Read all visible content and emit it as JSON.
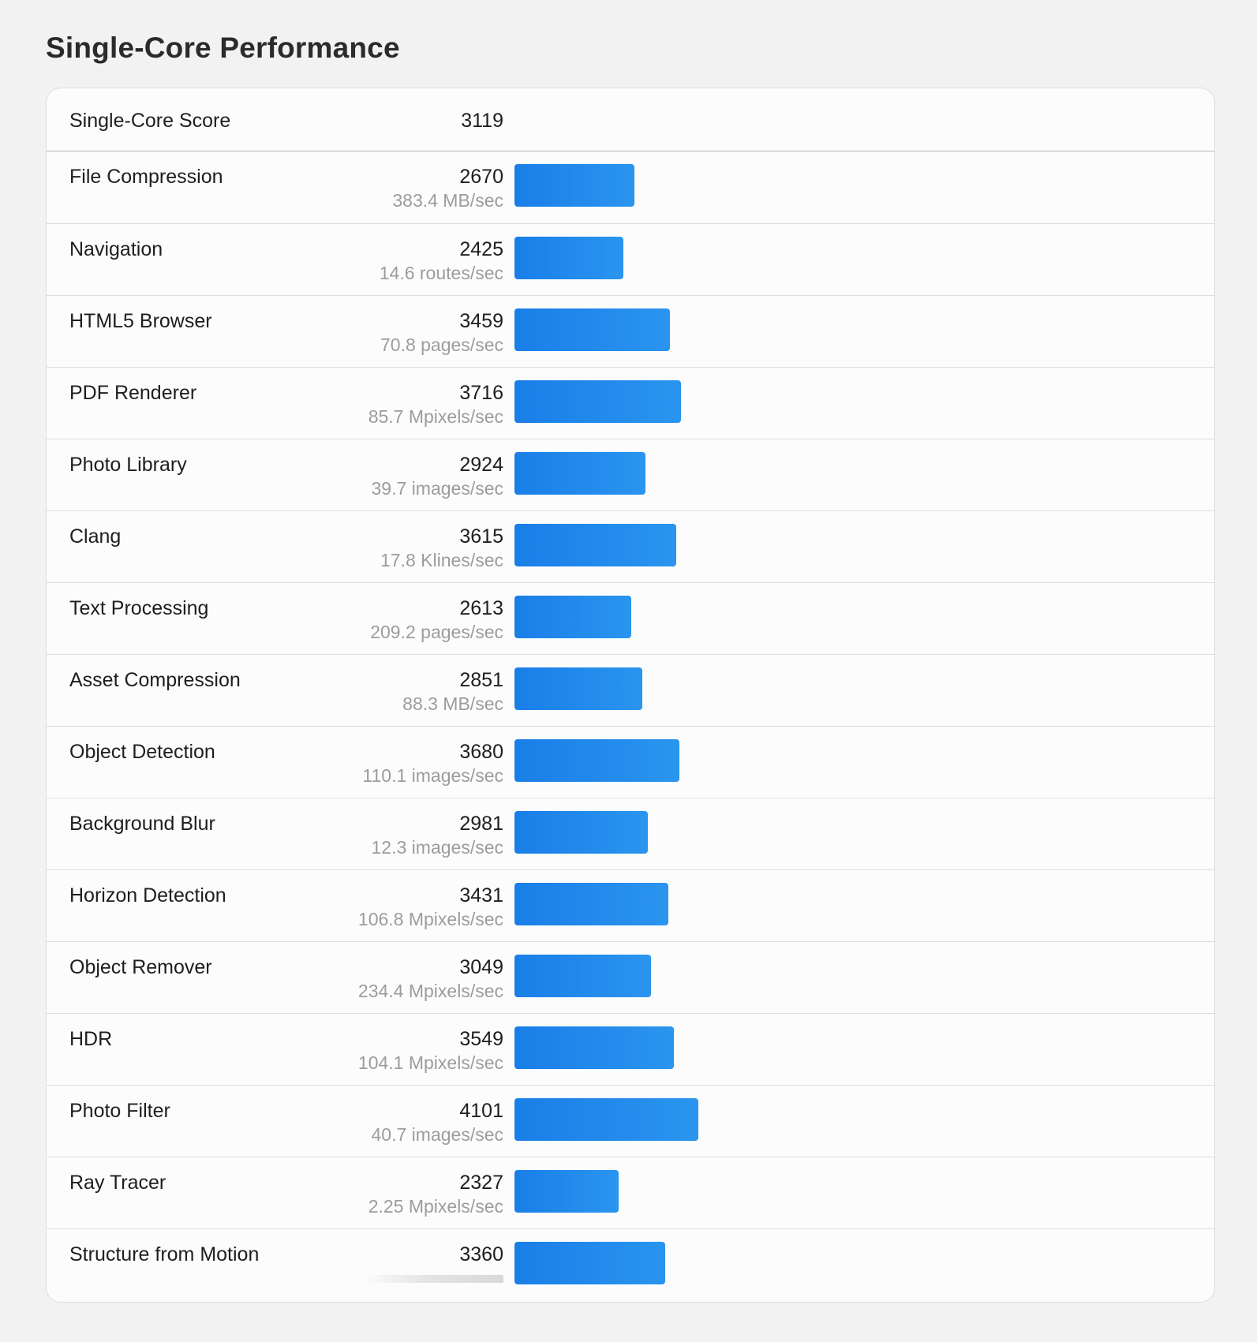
{
  "page": {
    "title": "Single-Core Performance"
  },
  "colors": {
    "bar_start": "#1a7ee8",
    "bar_end": "#2a95ef",
    "background": "#f2f2f2",
    "card": "#fcfcfc",
    "secondary_text": "#9c9c9c"
  },
  "summary": {
    "label": "Single-Core Score",
    "score": "3119"
  },
  "bar_scale_max": 4101,
  "benchmarks": [
    {
      "name": "File Compression",
      "score": "2670",
      "value": 2670,
      "sub": "383.4 MB/sec"
    },
    {
      "name": "Navigation",
      "score": "2425",
      "value": 2425,
      "sub": "14.6 routes/sec"
    },
    {
      "name": "HTML5 Browser",
      "score": "3459",
      "value": 3459,
      "sub": "70.8 pages/sec"
    },
    {
      "name": "PDF Renderer",
      "score": "3716",
      "value": 3716,
      "sub": "85.7 Mpixels/sec"
    },
    {
      "name": "Photo Library",
      "score": "2924",
      "value": 2924,
      "sub": "39.7 images/sec"
    },
    {
      "name": "Clang",
      "score": "3615",
      "value": 3615,
      "sub": "17.8 Klines/sec"
    },
    {
      "name": "Text Processing",
      "score": "2613",
      "value": 2613,
      "sub": "209.2 pages/sec"
    },
    {
      "name": "Asset Compression",
      "score": "2851",
      "value": 2851,
      "sub": "88.3 MB/sec"
    },
    {
      "name": "Object Detection",
      "score": "3680",
      "value": 3680,
      "sub": "110.1 images/sec"
    },
    {
      "name": "Background Blur",
      "score": "2981",
      "value": 2981,
      "sub": "12.3 images/sec"
    },
    {
      "name": "Horizon Detection",
      "score": "3431",
      "value": 3431,
      "sub": "106.8 Mpixels/sec"
    },
    {
      "name": "Object Remover",
      "score": "3049",
      "value": 3049,
      "sub": "234.4 Mpixels/sec"
    },
    {
      "name": "HDR",
      "score": "3549",
      "value": 3549,
      "sub": "104.1 Mpixels/sec"
    },
    {
      "name": "Photo Filter",
      "score": "4101",
      "value": 4101,
      "sub": "40.7 images/sec"
    },
    {
      "name": "Ray Tracer",
      "score": "2327",
      "value": 2327,
      "sub": "2.25 Mpixels/sec"
    },
    {
      "name": "Structure from Motion",
      "score": "3360",
      "value": 3360,
      "sub": ""
    }
  ]
}
